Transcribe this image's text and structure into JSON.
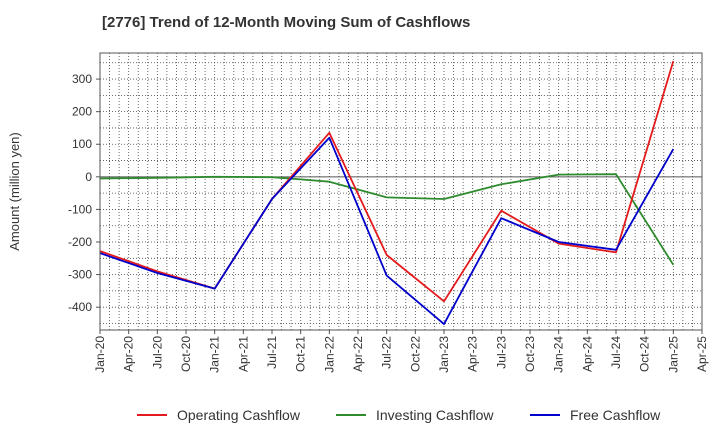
{
  "chart_data": {
    "type": "line",
    "title": "[2776]  Trend of 12-Month Moving Sum of Cashflows",
    "ylabel": "Amount (million yen)",
    "xlabel": "",
    "ylim": [
      -470,
      380
    ],
    "yticks": [
      300,
      200,
      100,
      0,
      -100,
      -200,
      -300,
      -400
    ],
    "categories": [
      "Jan-20",
      "Apr-20",
      "Jul-20",
      "Oct-20",
      "Jan-21",
      "Apr-21",
      "Jul-21",
      "Oct-21",
      "Jan-22",
      "Apr-22",
      "Jul-22",
      "Oct-22",
      "Jan-23",
      "Apr-23",
      "Jul-23",
      "Oct-23",
      "Jan-24",
      "Apr-24",
      "Jul-24",
      "Oct-24",
      "Jan-25",
      "Apr-25"
    ],
    "grid": true,
    "legend_position": "bottom",
    "series": [
      {
        "name": "Operating Cashflow",
        "color": "#e41a1c",
        "x": [
          "Jan-20",
          "Jul-20",
          "Jan-21",
          "Jul-21",
          "Jan-22",
          "Jul-22",
          "Jan-23",
          "Jul-23",
          "Jan-24",
          "Jul-24",
          "Jan-25"
        ],
        "values": [
          -228,
          -290,
          -343,
          -68,
          135,
          -240,
          -382,
          -104,
          -205,
          -232,
          355
        ]
      },
      {
        "name": "Investing Cashflow",
        "color": "#2e8b2e",
        "x": [
          "Jan-20",
          "Jul-20",
          "Jan-21",
          "Jul-21",
          "Oct-21",
          "Jan-22",
          "Jul-22",
          "Jan-23",
          "Jul-23",
          "Jan-24",
          "Jul-24",
          "Jan-25"
        ],
        "values": [
          -5,
          -3,
          0,
          -1,
          -8,
          -15,
          -63,
          -68,
          -23,
          7,
          8,
          -270
        ]
      },
      {
        "name": "Free Cashflow",
        "color": "#0000cc",
        "x": [
          "Jan-20",
          "Jul-20",
          "Jan-21",
          "Jul-21",
          "Jan-22",
          "Jul-22",
          "Jan-23",
          "Jul-23",
          "Jan-24",
          "Jul-24",
          "Jan-25"
        ],
        "values": [
          -234,
          -295,
          -343,
          -68,
          120,
          -303,
          -452,
          -127,
          -200,
          -224,
          85
        ]
      }
    ]
  }
}
